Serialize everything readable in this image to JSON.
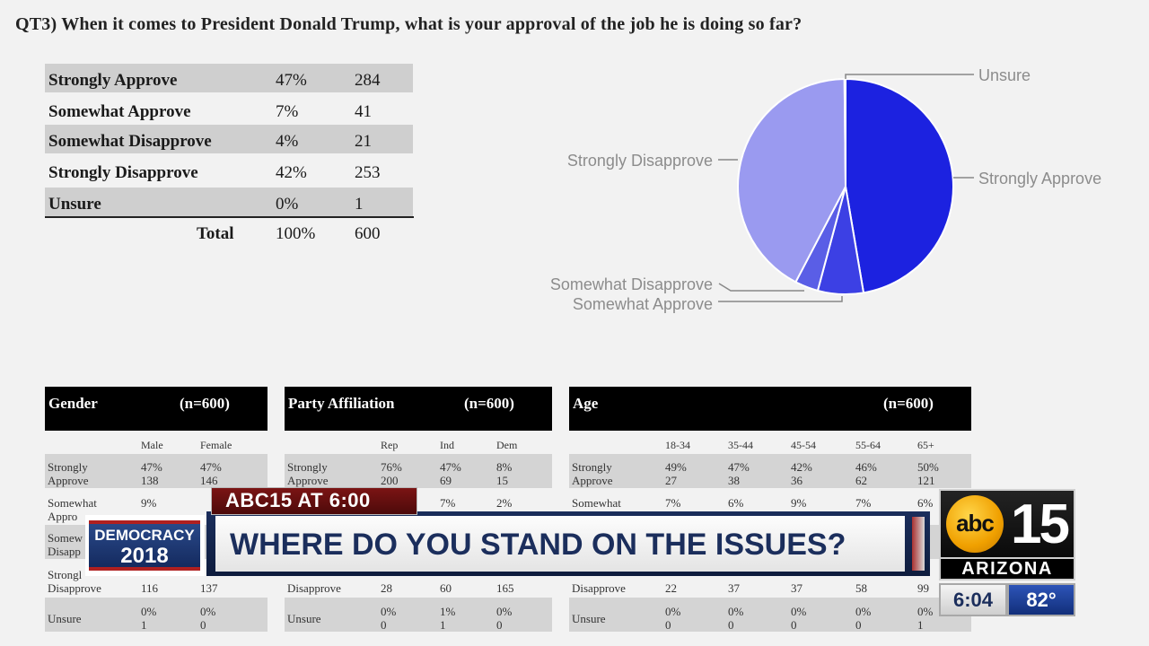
{
  "question": "QT3) When it comes to President Donald Trump, what is your approval of the job he is doing so far?",
  "summary_table": {
    "rows": [
      {
        "label": "Strongly Approve",
        "pct": "47%",
        "count": "284"
      },
      {
        "label": "Somewhat Approve",
        "pct": "7%",
        "count": "41"
      },
      {
        "label": "Somewhat Disapprove",
        "pct": "4%",
        "count": "21"
      },
      {
        "label": "Strongly Disapprove",
        "pct": "42%",
        "count": "253"
      },
      {
        "label": "Unsure",
        "pct": "0%",
        "count": "1"
      }
    ],
    "total": {
      "label": "Total",
      "pct": "100%",
      "count": "600"
    }
  },
  "chart_data": {
    "type": "pie",
    "slices": [
      {
        "label": "Strongly Approve",
        "value": 284,
        "color": "#1c22e0"
      },
      {
        "label": "Somewhat Approve",
        "value": 41,
        "color": "#3c40e4"
      },
      {
        "label": "Somewhat Disapprove",
        "value": 21,
        "color": "#5a5ee6"
      },
      {
        "label": "Strongly Disapprove",
        "value": 253,
        "color": "#9a9af0"
      },
      {
        "label": "Unsure",
        "value": 1,
        "color": "#c8c8f6"
      }
    ]
  },
  "crosstabs": {
    "gender": {
      "title": "Gender",
      "n": "(n=600)",
      "columns": [
        "Male",
        "Female"
      ],
      "rows": [
        {
          "l1": "Strongly",
          "l2": "Approve",
          "vals": [
            [
              "47%",
              "138"
            ],
            [
              "47%",
              "146"
            ]
          ]
        },
        {
          "l1": "Somewhat",
          "l2": "Appro",
          "vals": [
            [
              "9%",
              ""
            ],
            [
              "",
              ""
            ]
          ]
        },
        {
          "l1": "Somew",
          "l2": "Disapp",
          "vals": [
            [
              "",
              ""
            ],
            [
              "",
              ""
            ]
          ]
        },
        {
          "l1": "Strongl",
          "l2": "Disapprove",
          "vals": [
            [
              "",
              "116"
            ],
            [
              "",
              "137"
            ]
          ]
        },
        {
          "l1": "Unsure",
          "l2": "",
          "vals": [
            [
              "0%",
              "1"
            ],
            [
              "0%",
              "0"
            ]
          ]
        }
      ]
    },
    "party": {
      "title": "Party Affiliation",
      "n": "(n=600)",
      "columns": [
        "Rep",
        "Ind",
        "Dem"
      ],
      "rows": [
        {
          "l1": "Strongly",
          "l2": "Approve",
          "vals": [
            [
              "76%",
              "200"
            ],
            [
              "47%",
              "69"
            ],
            [
              "8%",
              "15"
            ]
          ]
        },
        {
          "l1": "",
          "l2": "",
          "vals": [
            [
              "",
              ""
            ],
            [
              "7%",
              ""
            ],
            [
              "2%",
              ""
            ]
          ]
        },
        {
          "l1": "",
          "l2": "",
          "vals": [
            [
              "",
              ""
            ],
            [
              "",
              ""
            ],
            [
              "",
              ""
            ]
          ]
        },
        {
          "l1": "",
          "l2": "Disapprove",
          "vals": [
            [
              "",
              "28"
            ],
            [
              "",
              "60"
            ],
            [
              "",
              "165"
            ]
          ]
        },
        {
          "l1": "Unsure",
          "l2": "",
          "vals": [
            [
              "0%",
              "0"
            ],
            [
              "1%",
              "1"
            ],
            [
              "0%",
              "0"
            ]
          ]
        }
      ]
    },
    "age": {
      "title": "Age",
      "n": "(n=600)",
      "columns": [
        "18-34",
        "35-44",
        "45-54",
        "55-64",
        "65+"
      ],
      "rows": [
        {
          "l1": "Strongly",
          "l2": "Approve",
          "vals": [
            [
              "49%",
              "27"
            ],
            [
              "47%",
              "38"
            ],
            [
              "42%",
              "36"
            ],
            [
              "46%",
              "62"
            ],
            [
              "50%",
              "121"
            ]
          ]
        },
        {
          "l1": "Somewhat",
          "l2": "",
          "vals": [
            [
              "7%",
              ""
            ],
            [
              "6%",
              ""
            ],
            [
              "9%",
              ""
            ],
            [
              "7%",
              ""
            ],
            [
              "6%",
              ""
            ]
          ]
        },
        {
          "l1": "",
          "l2": "",
          "vals": [
            [
              "",
              ""
            ],
            [
              "",
              ""
            ],
            [
              "",
              ""
            ],
            [
              "",
              ""
            ],
            [
              "",
              ""
            ]
          ]
        },
        {
          "l1": "",
          "l2": "Disapprove",
          "vals": [
            [
              "",
              "22"
            ],
            [
              "",
              "37"
            ],
            [
              "",
              "37"
            ],
            [
              "",
              "58"
            ],
            [
              "",
              "99"
            ]
          ]
        },
        {
          "l1": "Unsure",
          "l2": "",
          "vals": [
            [
              "0%",
              "0"
            ],
            [
              "0%",
              "0"
            ],
            [
              "0%",
              "0"
            ],
            [
              "0%",
              "0"
            ],
            [
              "0%",
              "1"
            ]
          ]
        }
      ]
    }
  },
  "overlay": {
    "show_title": "ABC15 AT 6:00",
    "headline": "WHERE DO YOU STAND ON THE ISSUES?",
    "democracy_line1": "DEMOCRACY",
    "democracy_line2": "2018",
    "station_logo": "abc",
    "channel": "15",
    "market": "ARIZONA",
    "time": "6:04",
    "temperature": "82°"
  }
}
